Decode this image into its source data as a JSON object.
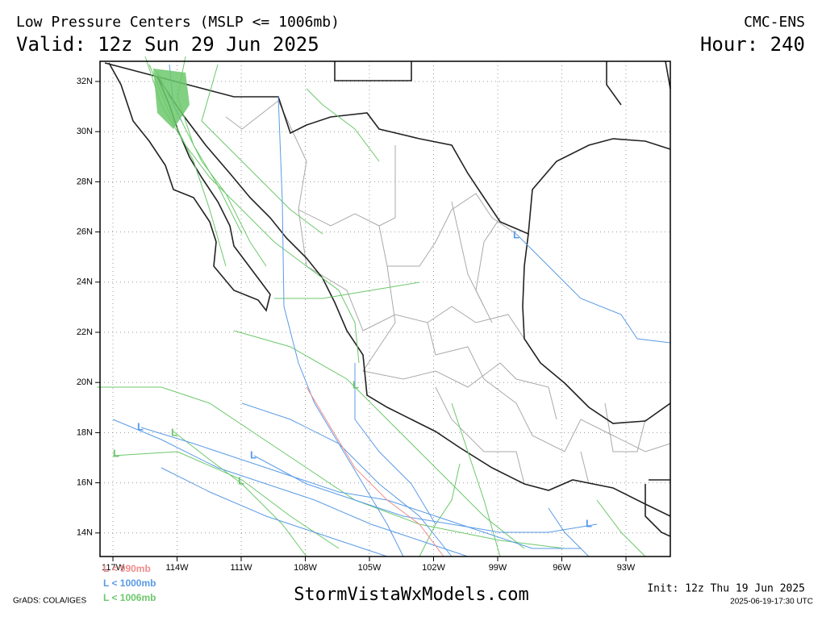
{
  "header": {
    "title": "Low Pressure Centers (MSLP <= 1006mb)",
    "valid": "Valid: 12z Sun 29 Jun 2025",
    "model": "CMC-ENS",
    "hour": "Hour: 240"
  },
  "map": {
    "lat_labels": [
      "32N",
      "30N",
      "28N",
      "26N",
      "24N",
      "22N",
      "20N",
      "18N",
      "16N",
      "14N"
    ],
    "lon_labels": [
      "117W",
      "114W",
      "111W",
      "108W",
      "105W",
      "102W",
      "99W",
      "96W",
      "93W"
    ]
  },
  "legend": [
    {
      "label": "L < 990mb",
      "color": "#f08c8c"
    },
    {
      "label": "L < 1000mb",
      "color": "#5a9be6"
    },
    {
      "label": "L < 1006mb",
      "color": "#6cc86c"
    }
  ],
  "footer": {
    "software": "GrADS: COLA/IGES",
    "site": "StormVistaWxModels.com",
    "init": "Init: 12z Thu 19 Jun 2025",
    "timestamp": "2025-06-19-17:30 UTC"
  }
}
